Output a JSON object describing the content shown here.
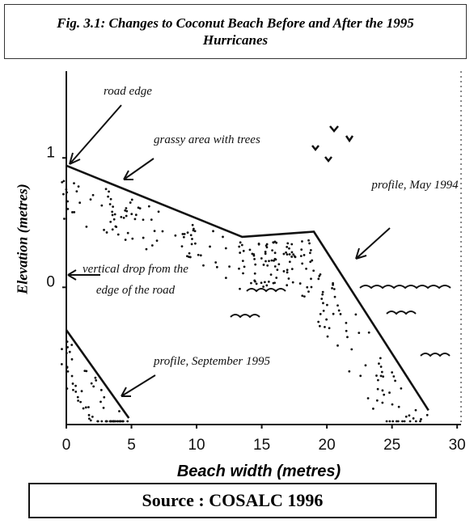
{
  "chart_data": {
    "type": "line",
    "title": "Fig. 3.1: Changes to Coconut Beach Before and After the 1995 Hurricanes",
    "x_label": "Beach width (metres)",
    "y_label": "Elevation (metres)",
    "xlim": [
      0,
      30.3
    ],
    "ylim": [
      -1.06,
      1.67
    ],
    "xticks": [
      0,
      5,
      10,
      15,
      20,
      25,
      30
    ],
    "yticks": [
      0,
      1
    ],
    "series": [
      {
        "name": "profile, May 1994",
        "color": "#111111",
        "x": [
          0,
          13.5,
          19,
          27.8
        ],
        "values": [
          0.94,
          0.39,
          0.43,
          -0.95
        ]
      },
      {
        "name": "profile, September 1995",
        "color": "#111111",
        "x": [
          0,
          4.8
        ],
        "values": [
          -0.33,
          -1.01
        ]
      }
    ],
    "annotations": [
      "road edge",
      "grassy area with trees",
      "vertical drop from the edge of the road"
    ],
    "source": "Source : COSALC 1996"
  }
}
